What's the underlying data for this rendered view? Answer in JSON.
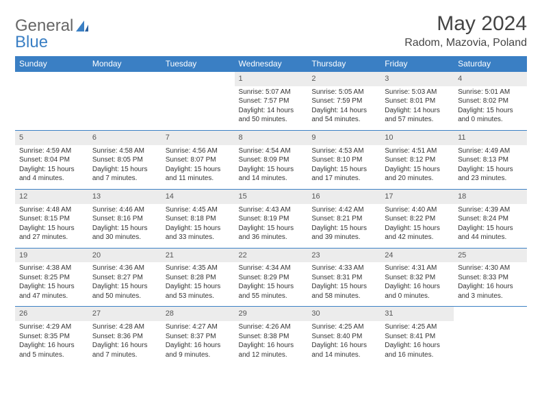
{
  "brand": {
    "part1": "General",
    "part2": "Blue"
  },
  "title": "May 2024",
  "location": "Radom, Mazovia, Poland",
  "colors": {
    "header_bg": "#3a7fc4",
    "header_text": "#ffffff",
    "daynum_bg": "#ececec",
    "border": "#3a7fc4",
    "text": "#333333",
    "background": "#ffffff"
  },
  "typography": {
    "title_fontsize": 30,
    "location_fontsize": 16,
    "header_fontsize": 12,
    "daynum_fontsize": 11,
    "content_fontsize": 10
  },
  "weekdays": [
    "Sunday",
    "Monday",
    "Tuesday",
    "Wednesday",
    "Thursday",
    "Friday",
    "Saturday"
  ],
  "weeks": [
    [
      {
        "empty": true
      },
      {
        "empty": true
      },
      {
        "empty": true
      },
      {
        "day": "1",
        "sunrise": "Sunrise: 5:07 AM",
        "sunset": "Sunset: 7:57 PM",
        "daylight": "Daylight: 14 hours and 50 minutes."
      },
      {
        "day": "2",
        "sunrise": "Sunrise: 5:05 AM",
        "sunset": "Sunset: 7:59 PM",
        "daylight": "Daylight: 14 hours and 54 minutes."
      },
      {
        "day": "3",
        "sunrise": "Sunrise: 5:03 AM",
        "sunset": "Sunset: 8:01 PM",
        "daylight": "Daylight: 14 hours and 57 minutes."
      },
      {
        "day": "4",
        "sunrise": "Sunrise: 5:01 AM",
        "sunset": "Sunset: 8:02 PM",
        "daylight": "Daylight: 15 hours and 0 minutes."
      }
    ],
    [
      {
        "day": "5",
        "sunrise": "Sunrise: 4:59 AM",
        "sunset": "Sunset: 8:04 PM",
        "daylight": "Daylight: 15 hours and 4 minutes."
      },
      {
        "day": "6",
        "sunrise": "Sunrise: 4:58 AM",
        "sunset": "Sunset: 8:05 PM",
        "daylight": "Daylight: 15 hours and 7 minutes."
      },
      {
        "day": "7",
        "sunrise": "Sunrise: 4:56 AM",
        "sunset": "Sunset: 8:07 PM",
        "daylight": "Daylight: 15 hours and 11 minutes."
      },
      {
        "day": "8",
        "sunrise": "Sunrise: 4:54 AM",
        "sunset": "Sunset: 8:09 PM",
        "daylight": "Daylight: 15 hours and 14 minutes."
      },
      {
        "day": "9",
        "sunrise": "Sunrise: 4:53 AM",
        "sunset": "Sunset: 8:10 PM",
        "daylight": "Daylight: 15 hours and 17 minutes."
      },
      {
        "day": "10",
        "sunrise": "Sunrise: 4:51 AM",
        "sunset": "Sunset: 8:12 PM",
        "daylight": "Daylight: 15 hours and 20 minutes."
      },
      {
        "day": "11",
        "sunrise": "Sunrise: 4:49 AM",
        "sunset": "Sunset: 8:13 PM",
        "daylight": "Daylight: 15 hours and 23 minutes."
      }
    ],
    [
      {
        "day": "12",
        "sunrise": "Sunrise: 4:48 AM",
        "sunset": "Sunset: 8:15 PM",
        "daylight": "Daylight: 15 hours and 27 minutes."
      },
      {
        "day": "13",
        "sunrise": "Sunrise: 4:46 AM",
        "sunset": "Sunset: 8:16 PM",
        "daylight": "Daylight: 15 hours and 30 minutes."
      },
      {
        "day": "14",
        "sunrise": "Sunrise: 4:45 AM",
        "sunset": "Sunset: 8:18 PM",
        "daylight": "Daylight: 15 hours and 33 minutes."
      },
      {
        "day": "15",
        "sunrise": "Sunrise: 4:43 AM",
        "sunset": "Sunset: 8:19 PM",
        "daylight": "Daylight: 15 hours and 36 minutes."
      },
      {
        "day": "16",
        "sunrise": "Sunrise: 4:42 AM",
        "sunset": "Sunset: 8:21 PM",
        "daylight": "Daylight: 15 hours and 39 minutes."
      },
      {
        "day": "17",
        "sunrise": "Sunrise: 4:40 AM",
        "sunset": "Sunset: 8:22 PM",
        "daylight": "Daylight: 15 hours and 42 minutes."
      },
      {
        "day": "18",
        "sunrise": "Sunrise: 4:39 AM",
        "sunset": "Sunset: 8:24 PM",
        "daylight": "Daylight: 15 hours and 44 minutes."
      }
    ],
    [
      {
        "day": "19",
        "sunrise": "Sunrise: 4:38 AM",
        "sunset": "Sunset: 8:25 PM",
        "daylight": "Daylight: 15 hours and 47 minutes."
      },
      {
        "day": "20",
        "sunrise": "Sunrise: 4:36 AM",
        "sunset": "Sunset: 8:27 PM",
        "daylight": "Daylight: 15 hours and 50 minutes."
      },
      {
        "day": "21",
        "sunrise": "Sunrise: 4:35 AM",
        "sunset": "Sunset: 8:28 PM",
        "daylight": "Daylight: 15 hours and 53 minutes."
      },
      {
        "day": "22",
        "sunrise": "Sunrise: 4:34 AM",
        "sunset": "Sunset: 8:29 PM",
        "daylight": "Daylight: 15 hours and 55 minutes."
      },
      {
        "day": "23",
        "sunrise": "Sunrise: 4:33 AM",
        "sunset": "Sunset: 8:31 PM",
        "daylight": "Daylight: 15 hours and 58 minutes."
      },
      {
        "day": "24",
        "sunrise": "Sunrise: 4:31 AM",
        "sunset": "Sunset: 8:32 PM",
        "daylight": "Daylight: 16 hours and 0 minutes."
      },
      {
        "day": "25",
        "sunrise": "Sunrise: 4:30 AM",
        "sunset": "Sunset: 8:33 PM",
        "daylight": "Daylight: 16 hours and 3 minutes."
      }
    ],
    [
      {
        "day": "26",
        "sunrise": "Sunrise: 4:29 AM",
        "sunset": "Sunset: 8:35 PM",
        "daylight": "Daylight: 16 hours and 5 minutes."
      },
      {
        "day": "27",
        "sunrise": "Sunrise: 4:28 AM",
        "sunset": "Sunset: 8:36 PM",
        "daylight": "Daylight: 16 hours and 7 minutes."
      },
      {
        "day": "28",
        "sunrise": "Sunrise: 4:27 AM",
        "sunset": "Sunset: 8:37 PM",
        "daylight": "Daylight: 16 hours and 9 minutes."
      },
      {
        "day": "29",
        "sunrise": "Sunrise: 4:26 AM",
        "sunset": "Sunset: 8:38 PM",
        "daylight": "Daylight: 16 hours and 12 minutes."
      },
      {
        "day": "30",
        "sunrise": "Sunrise: 4:25 AM",
        "sunset": "Sunset: 8:40 PM",
        "daylight": "Daylight: 16 hours and 14 minutes."
      },
      {
        "day": "31",
        "sunrise": "Sunrise: 4:25 AM",
        "sunset": "Sunset: 8:41 PM",
        "daylight": "Daylight: 16 hours and 16 minutes."
      },
      {
        "empty": true
      }
    ]
  ]
}
